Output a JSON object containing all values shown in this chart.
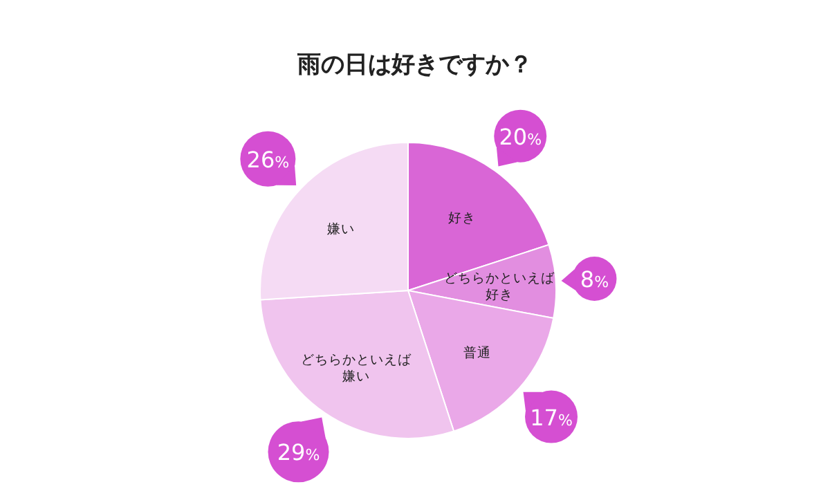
{
  "chart_data": {
    "type": "pie",
    "title": "雨の日は好きですか？",
    "categories": [
      "好き",
      "どちらかといえば好き",
      "普通",
      "どちらかといえば嫌い",
      "嫌い"
    ],
    "values": [
      20,
      8,
      17,
      29,
      26
    ],
    "colors": [
      "#d966d6",
      "#e28ee0",
      "#eaa8e8",
      "#f0c4ee",
      "#f5dbf4"
    ],
    "value_labels": [
      "20%",
      "8%",
      "17%",
      "29%",
      "26%"
    ]
  }
}
